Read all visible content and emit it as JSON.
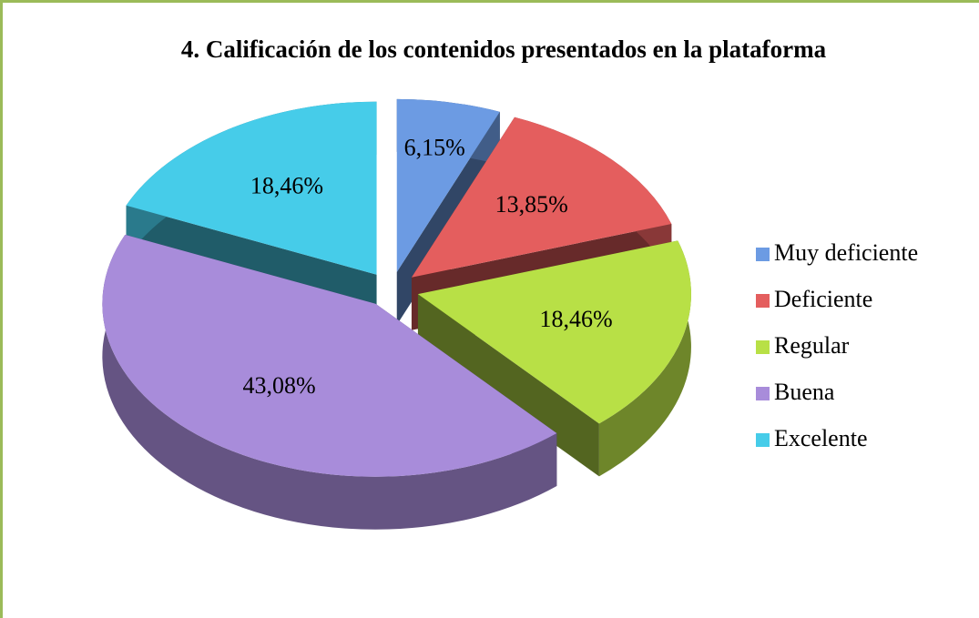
{
  "chart_data": {
    "type": "pie3d",
    "title": "4. Calificación de los contenidos presentados en la plataforma",
    "categories": [
      "Muy deficiente",
      "Deficiente",
      "Regular",
      "Buena",
      "Excelente"
    ],
    "values": [
      6.15,
      13.85,
      18.46,
      43.08,
      18.46
    ],
    "value_labels": [
      "6,15%",
      "13,85%",
      "18,46%",
      "43,08%",
      "18,46%"
    ],
    "colors": [
      "#6c9be3",
      "#e45e5e",
      "#b8e046",
      "#a88cda",
      "#46cce9"
    ],
    "legend": "right"
  }
}
